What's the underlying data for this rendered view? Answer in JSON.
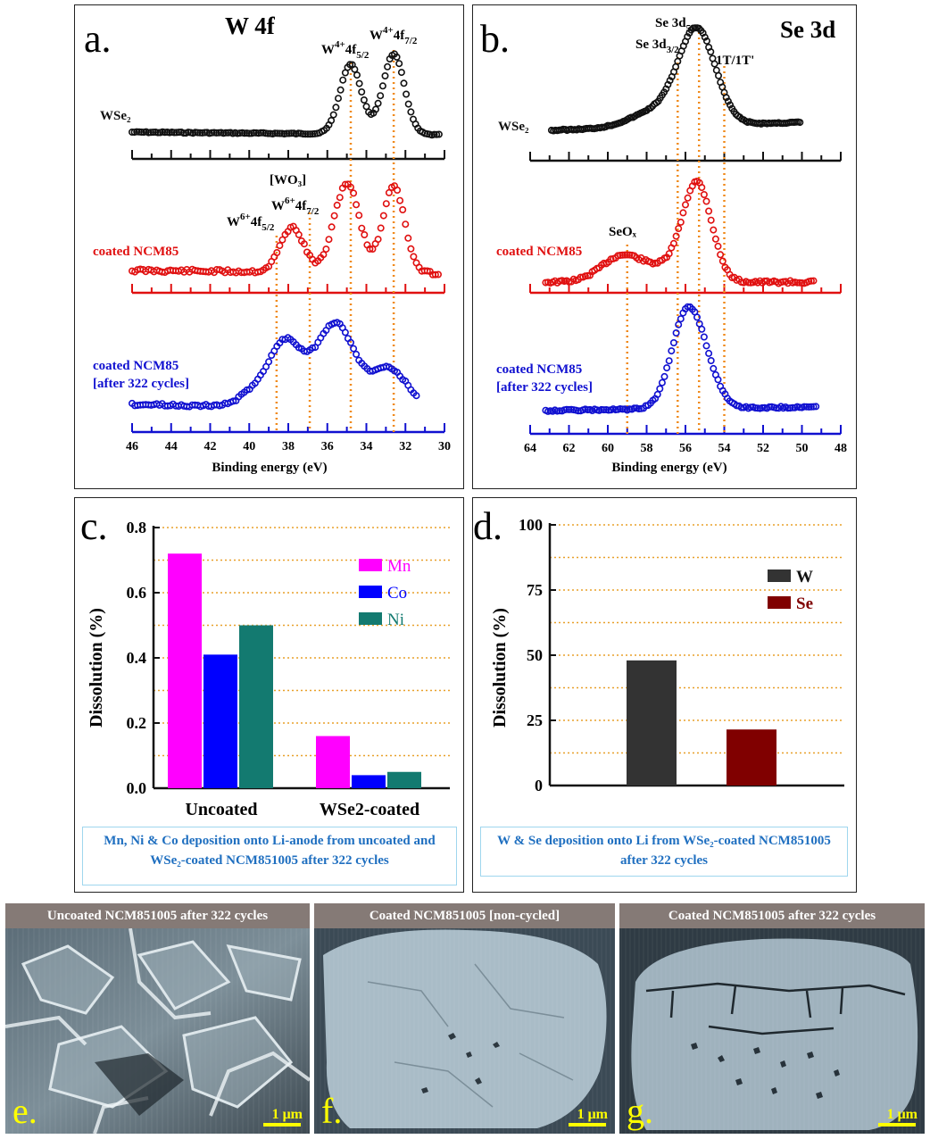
{
  "panel_a": {
    "label": "a.",
    "title": "W 4f",
    "xlabel": "Binding energy (eV)",
    "xticks": [
      "46",
      "44",
      "42",
      "40",
      "38",
      "36",
      "34",
      "32",
      "30"
    ],
    "xlim": [
      46,
      30
    ],
    "peaks": {
      "w4_52_main": "W",
      "w4_52_sup": "4+",
      "w4_52_mid": "4f",
      "w4_52_sub": "5/2",
      "w4_72_main": "W",
      "w4_72_sup": "4+",
      "w4_72_mid": "4f",
      "w4_72_sub": "7/2",
      "wo3": "[WO₃]",
      "w6_72_main": "W",
      "w6_72_sup": "6+",
      "w6_72_mid": "4f",
      "w6_72_sub": "7/2",
      "w6_52_main": "W",
      "w6_52_sup": "6+",
      "w6_52_mid": "4f",
      "w6_52_sub": "5/2"
    },
    "series_labels": {
      "s1": "WSe₂",
      "s2": "coated NCM85",
      "s3a": "coated NCM85",
      "s3b": "[after 322 cycles]"
    },
    "colors": {
      "s1": "#111111",
      "s2": "#e01010",
      "s3": "#1010d0",
      "guide": "#f08a1c"
    }
  },
  "panel_b": {
    "label": "b.",
    "title": "Se 3d",
    "xlabel": "Binding energy (eV)",
    "xticks": [
      "64",
      "62",
      "60",
      "58",
      "56",
      "54",
      "52",
      "50",
      "48"
    ],
    "xlim": [
      64,
      48
    ],
    "peaks": {
      "se52_main": "Se 3d",
      "se52_sub": "5/2",
      "se32_main": "Se 3d",
      "se32_sub": "3/2",
      "phase": "1T/1T'",
      "seox": "SeOₓ"
    },
    "series_labels": {
      "s1": "WSe₂",
      "s2": "coated NCM85",
      "s3a": "coated NCM85",
      "s3b": "[after 322 cycles]"
    }
  },
  "chart_data": [
    {
      "type": "bar",
      "panel": "c.",
      "ylabel": "Dissolution (%)",
      "ylim": [
        0,
        0.8
      ],
      "yticks": [
        "0.0",
        "0.2",
        "0.4",
        "0.6",
        "0.8"
      ],
      "categories": [
        "Uncoated",
        "WSe2-coated"
      ],
      "series": [
        {
          "name": "Mn",
          "color": "#ff00ff",
          "values": [
            0.72,
            0.16
          ]
        },
        {
          "name": "Co",
          "color": "#0000ff",
          "values": [
            0.41,
            0.04
          ]
        },
        {
          "name": "Ni",
          "color": "#137a70",
          "values": [
            0.5,
            0.05
          ]
        }
      ],
      "grid": "dotted",
      "legend": "top-right"
    },
    {
      "type": "bar",
      "panel": "d.",
      "ylabel": "Dissolution (%)",
      "ylim": [
        0,
        100
      ],
      "yticks": [
        "0",
        "25",
        "50",
        "75",
        "100"
      ],
      "categories": [
        "W",
        "Se"
      ],
      "series": [
        {
          "name": "W",
          "color": "#333333",
          "values": [
            48,
            null
          ]
        },
        {
          "name": "Se",
          "color": "#800000",
          "values": [
            null,
            21.5
          ]
        }
      ],
      "grid": "dotted",
      "legend": "top-right"
    }
  ],
  "caption_c": "Mn, Ni & Co deposition onto Li-anode from uncoated and WSe₂-coated NCM851005 after 322 cycles",
  "caption_d": "W & Se deposition onto Li from WSe₂-coated NCM851005 after 322 cycles",
  "sem": [
    {
      "title": "Uncoated NCM851005 after 322 cycles",
      "letter": "e.",
      "scale": "1 μm"
    },
    {
      "title": "Coated NCM851005 [non-cycled]",
      "letter": "f.",
      "scale": "1 μm"
    },
    {
      "title": "Coated NCM851005 after 322 cycles",
      "letter": "g.",
      "scale": "1 μm"
    }
  ]
}
